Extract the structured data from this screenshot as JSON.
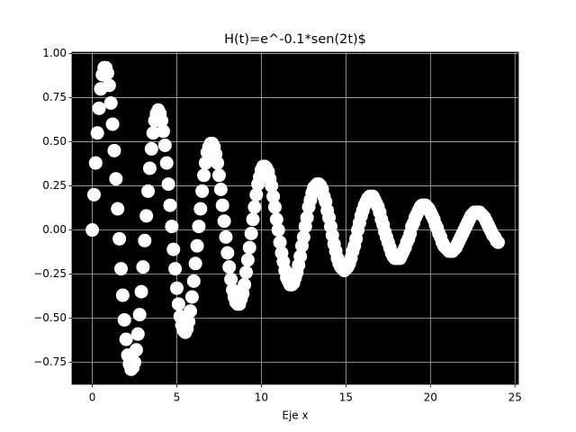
{
  "chart_data": {
    "type": "scatter",
    "title": "H(t)=e^-0.1*sen(2t)$",
    "x_label": "Eje x",
    "x": [
      0,
      0.1,
      0.2,
      0.3,
      0.4,
      0.5,
      0.6,
      0.7,
      0.8,
      0.9,
      1,
      1.1,
      1.2,
      1.3,
      1.4,
      1.5,
      1.6,
      1.7,
      1.8,
      1.9,
      2,
      2.1,
      2.2,
      2.3,
      2.4,
      2.5,
      2.6,
      2.7,
      2.8,
      2.9,
      3,
      3.1,
      3.2,
      3.3,
      3.4,
      3.5,
      3.6,
      3.7,
      3.8,
      3.9,
      4,
      4.1,
      4.2,
      4.3,
      4.4,
      4.5,
      4.6,
      4.7,
      4.8,
      4.9,
      5,
      5.1,
      5.2,
      5.3,
      5.4,
      5.5,
      5.6,
      5.7,
      5.8,
      5.9,
      6,
      6.1,
      6.2,
      6.3,
      6.4,
      6.5,
      6.6,
      6.7,
      6.8,
      6.9,
      7,
      7.1,
      7.2,
      7.3,
      7.4,
      7.5,
      7.6,
      7.7,
      7.8,
      7.9,
      8,
      8.1,
      8.2,
      8.3,
      8.4,
      8.5,
      8.6,
      8.7,
      8.8,
      8.9,
      9,
      9.1,
      9.2,
      9.3,
      9.4,
      9.5,
      9.6,
      9.7,
      9.8,
      9.9,
      10,
      10.1,
      10.2,
      10.3,
      10.4,
      10.5,
      10.6,
      10.7,
      10.8,
      10.9,
      11,
      11.1,
      11.2,
      11.3,
      11.4,
      11.5,
      11.6,
      11.7,
      11.8,
      11.9,
      12,
      12.1,
      12.2,
      12.3,
      12.4,
      12.5,
      12.6,
      12.7,
      12.8,
      12.9,
      13,
      13.1,
      13.2,
      13.3,
      13.4,
      13.5,
      13.6,
      13.7,
      13.8,
      13.9,
      14,
      14.1,
      14.2,
      14.3,
      14.4,
      14.5,
      14.6,
      14.7,
      14.8,
      14.9,
      15,
      15.1,
      15.2,
      15.3,
      15.4,
      15.5,
      15.6,
      15.7,
      15.8,
      15.9,
      16,
      16.1,
      16.2,
      16.3,
      16.4,
      16.5,
      16.6,
      16.7,
      16.8,
      16.9,
      17,
      17.1,
      17.2,
      17.3,
      17.4,
      17.5,
      17.6,
      17.7,
      17.8,
      17.9,
      18,
      18.1,
      18.2,
      18.3,
      18.4,
      18.5,
      18.6,
      18.7,
      18.8,
      18.9,
      19,
      19.1,
      19.2,
      19.3,
      19.4,
      19.5,
      19.6,
      19.7,
      19.8,
      19.9,
      20,
      20.1,
      20.2,
      20.3,
      20.4,
      20.5,
      20.6,
      20.7,
      20.8,
      20.9,
      21,
      21.1,
      21.2,
      21.3,
      21.4,
      21.5,
      21.6,
      21.7,
      21.8,
      21.9,
      22,
      22.1,
      22.2,
      22.3,
      22.4,
      22.5,
      22.6,
      22.7,
      22.8,
      22.9,
      23,
      23.1,
      23.2,
      23.3,
      23.4,
      23.5,
      23.6,
      23.7,
      23.8,
      23.9,
      24
    ],
    "values": [
      0,
      0.2,
      0.38,
      0.55,
      0.69,
      0.8,
      0.88,
      0.92,
      0.92,
      0.89,
      0.82,
      0.72,
      0.6,
      0.45,
      0.29,
      0.12,
      -0.05,
      -0.22,
      -0.37,
      -0.51,
      -0.62,
      -0.71,
      -0.76,
      -0.79,
      -0.78,
      -0.75,
      -0.68,
      -0.59,
      -0.48,
      -0.35,
      -0.21,
      -0.06,
      0.08,
      0.22,
      0.35,
      0.46,
      0.55,
      0.62,
      0.66,
      0.68,
      0.66,
      0.62,
      0.56,
      0.48,
      0.38,
      0.26,
      0.14,
      0.02,
      -0.11,
      -0.22,
      -0.33,
      -0.42,
      -0.49,
      -0.54,
      -0.57,
      -0.58,
      -0.56,
      -0.52,
      -0.46,
      -0.38,
      -0.29,
      -0.19,
      -0.09,
      0.02,
      0.12,
      0.22,
      0.31,
      0.38,
      0.44,
      0.47,
      0.49,
      0.49,
      0.47,
      0.43,
      0.38,
      0.31,
      0.23,
      0.14,
      0.05,
      -0.04,
      -0.13,
      -0.21,
      -0.28,
      -0.34,
      -0.38,
      -0.41,
      -0.42,
      -0.42,
      -0.39,
      -0.36,
      -0.31,
      -0.24,
      -0.17,
      -0.1,
      -0.02,
      0.06,
      0.13,
      0.2,
      0.26,
      0.3,
      0.34,
      0.36,
      0.36,
      0.35,
      0.33,
      0.29,
      0.25,
      0.19,
      0.13,
      0.06,
      0,
      -0.07,
      -0.13,
      -0.18,
      -0.23,
      -0.27,
      -0.29,
      -0.31,
      -0.31,
      -0.3,
      -0.27,
      -0.24,
      -0.2,
      -0.15,
      -0.09,
      -0.04,
      0.02,
      0.07,
      0.13,
      0.17,
      0.21,
      0.24,
      0.25,
      0.26,
      0.26,
      0.25,
      0.23,
      0.19,
      0.16,
      0.11,
      0.07,
      0.02,
      -0.03,
      -0.08,
      -0.12,
      -0.16,
      -0.19,
      -0.21,
      -0.22,
      -0.23,
      -0.22,
      -0.21,
      -0.19,
      -0.16,
      -0.12,
      -0.09,
      -0.05,
      0,
      0.04,
      0.08,
      0.11,
      0.14,
      0.16,
      0.18,
      0.19,
      0.19,
      0.19,
      0.17,
      0.15,
      0.13,
      0.1,
      0.06,
      0.03,
      -0.01,
      -0.04,
      -0.07,
      -0.1,
      -0.13,
      -0.15,
      -0.16,
      -0.16,
      -0.16,
      -0.16,
      -0.14,
      -0.12,
      -0.1,
      -0.07,
      -0.05,
      -0.02,
      0.02,
      0.04,
      0.07,
      0.09,
      0.11,
      0.13,
      0.14,
      0.14,
      0.14,
      0.13,
      0.12,
      0.1,
      0.08,
      0.06,
      0.03,
      0.01,
      -0.02,
      -0.04,
      -0.07,
      -0.09,
      -0.1,
      -0.11,
      -0.12,
      -0.12,
      -0.12,
      -0.11,
      -0.1,
      -0.08,
      -0.06,
      -0.04,
      -0.02,
      0,
      0.02,
      0.04,
      0.06,
      0.08,
      0.09,
      0.1,
      0.1,
      0.1,
      0.1,
      0.09,
      0.08,
      0.07,
      0.05,
      0.03,
      0.01,
      -0.01,
      -0.03,
      -0.04,
      -0.06,
      -0.07
    ],
    "color": "#ffffff",
    "axes_facecolor": "#000000",
    "grid": true,
    "xlim": [
      -1.2,
      25.2
    ],
    "xticks": [
      0,
      5,
      10,
      15,
      20,
      25
    ],
    "ylim": [
      -0.875,
      1.008
    ],
    "yticks": [
      {
        "value": -0.75,
        "label": "−0.75"
      },
      {
        "value": -0.5,
        "label": "−0.50"
      },
      {
        "value": -0.25,
        "label": "−0.25"
      },
      {
        "value": 0,
        "label": "0.00"
      },
      {
        "value": 0.25,
        "label": "0.25"
      },
      {
        "value": 0.5,
        "label": "0.50"
      },
      {
        "value": 0.75,
        "label": "0.75"
      },
      {
        "value": 1,
        "label": "1.00"
      }
    ]
  }
}
